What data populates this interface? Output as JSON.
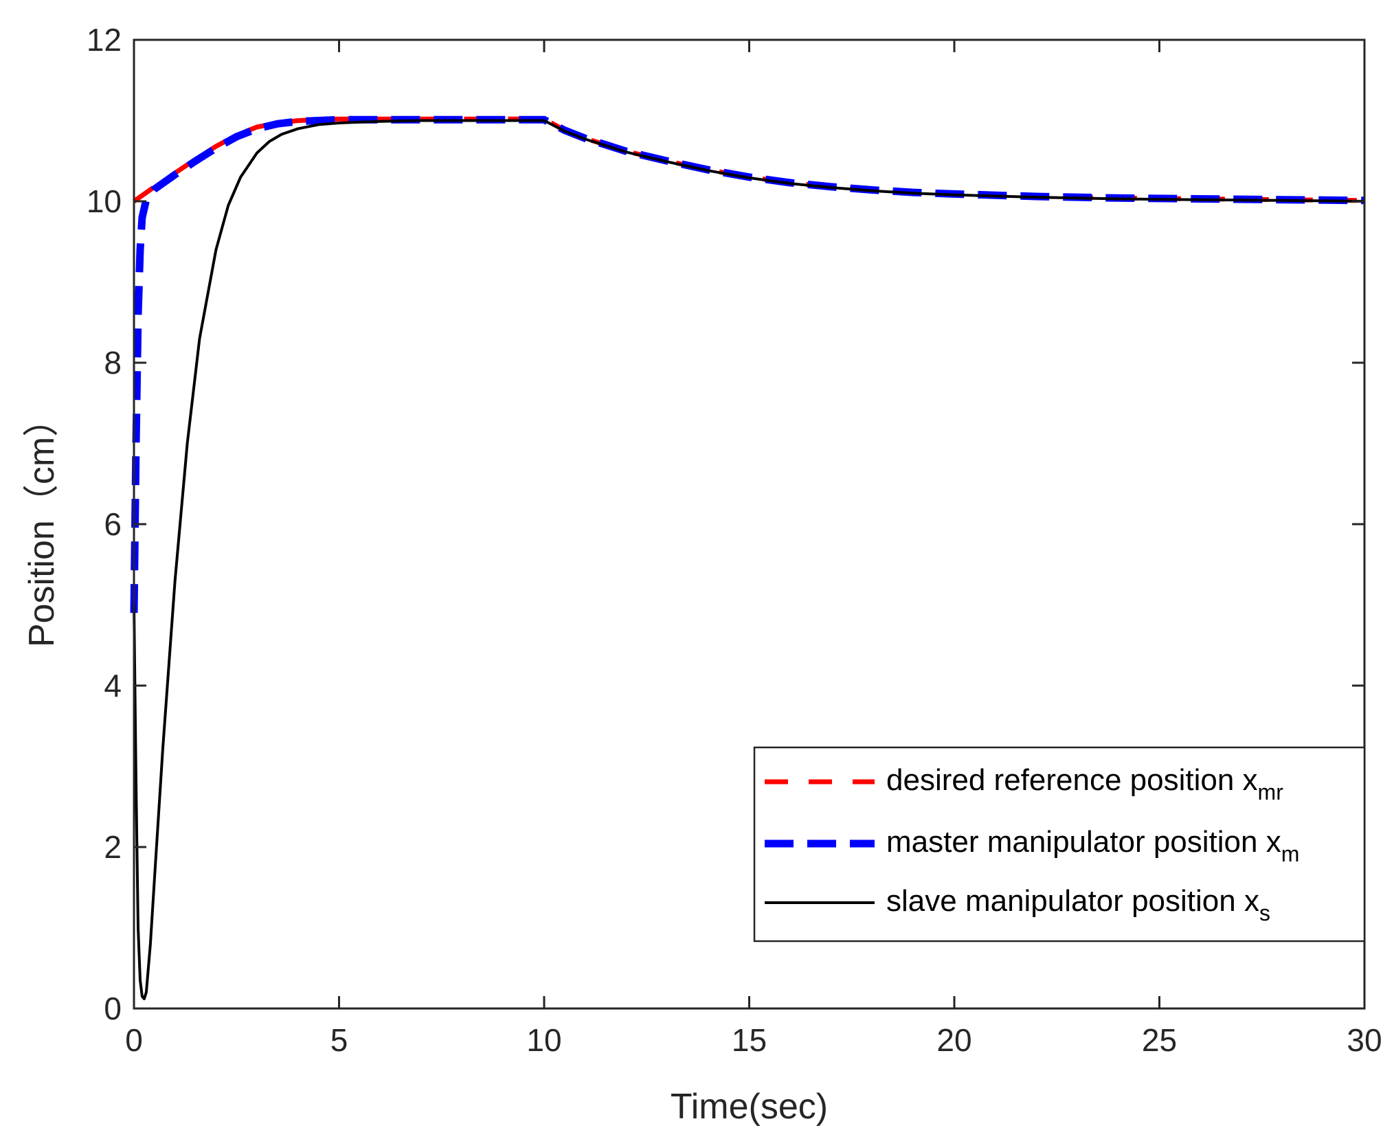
{
  "chart_data": {
    "type": "line",
    "title": "",
    "xlabel": "Time(sec)",
    "ylabel": "Position（cm）",
    "xlim": [
      0,
      30
    ],
    "ylim": [
      0,
      12
    ],
    "xticks": [
      0,
      5,
      10,
      15,
      20,
      25,
      30
    ],
    "yticks": [
      0,
      2,
      4,
      6,
      8,
      10,
      12
    ],
    "grid": false,
    "legend_position": "bottom-right",
    "series": [
      {
        "name": "desired reference position x",
        "subscript": "mr",
        "color": "#ff0000",
        "style": "dashed",
        "x": [
          0,
          0.5,
          1,
          1.5,
          2,
          2.5,
          3,
          3.5,
          4,
          4.5,
          5,
          5.5,
          6,
          7,
          8,
          9,
          10,
          10.5,
          11,
          11.5,
          12,
          13,
          14,
          15,
          16,
          17,
          18,
          19,
          20,
          22,
          24,
          26,
          28,
          30
        ],
        "y": [
          10,
          10.18,
          10.35,
          10.52,
          10.68,
          10.82,
          10.92,
          10.97,
          11.0,
          11.01,
          11.02,
          11.02,
          11.02,
          11.02,
          11.02,
          11.02,
          11.02,
          10.88,
          10.78,
          10.7,
          10.62,
          10.5,
          10.39,
          10.3,
          10.23,
          10.18,
          10.14,
          10.11,
          10.09,
          10.06,
          10.04,
          10.03,
          10.02,
          10.01
        ]
      },
      {
        "name": "master manipulator position x",
        "subscript": "m",
        "color": "#0000ff",
        "style": "dashed",
        "x": [
          0,
          0.05,
          0.1,
          0.15,
          0.2,
          0.3,
          0.5,
          1,
          1.5,
          2,
          2.5,
          3,
          3.5,
          4,
          4.5,
          5,
          5.5,
          6,
          7,
          8,
          9,
          10,
          10.5,
          11,
          11.5,
          12,
          13,
          14,
          15,
          16,
          17,
          18,
          19,
          20,
          22,
          24,
          26,
          28,
          30
        ],
        "y": [
          4.9,
          7.0,
          8.6,
          9.4,
          9.8,
          10.02,
          10.15,
          10.33,
          10.5,
          10.66,
          10.8,
          10.9,
          10.96,
          10.99,
          11.0,
          11.01,
          11.01,
          11.01,
          11.01,
          11.01,
          11.01,
          11.01,
          10.88,
          10.78,
          10.7,
          10.62,
          10.5,
          10.39,
          10.3,
          10.23,
          10.18,
          10.14,
          10.11,
          10.09,
          10.06,
          10.04,
          10.03,
          10.02,
          10.01
        ]
      },
      {
        "name": "slave manipulator position x",
        "subscript": "s",
        "color": "#000000",
        "style": "solid",
        "x": [
          0,
          0.05,
          0.1,
          0.15,
          0.2,
          0.25,
          0.3,
          0.4,
          0.5,
          0.7,
          1,
          1.3,
          1.6,
          2,
          2.3,
          2.6,
          3,
          3.3,
          3.6,
          4,
          4.5,
          5,
          5.5,
          6,
          7,
          8,
          9,
          10,
          10.5,
          11,
          11.5,
          12,
          13,
          14,
          15,
          16,
          17,
          18,
          19,
          20,
          22,
          24,
          26,
          28,
          30
        ],
        "y": [
          5.0,
          2.8,
          1.0,
          0.35,
          0.15,
          0.12,
          0.2,
          0.8,
          1.6,
          3.2,
          5.3,
          7.0,
          8.3,
          9.4,
          9.95,
          10.3,
          10.6,
          10.74,
          10.83,
          10.9,
          10.95,
          10.97,
          10.98,
          10.99,
          11.0,
          11.0,
          11.0,
          11.0,
          10.87,
          10.77,
          10.69,
          10.61,
          10.49,
          10.38,
          10.29,
          10.22,
          10.17,
          10.13,
          10.1,
          10.08,
          10.05,
          10.03,
          10.02,
          10.01,
          10.0
        ]
      }
    ]
  }
}
